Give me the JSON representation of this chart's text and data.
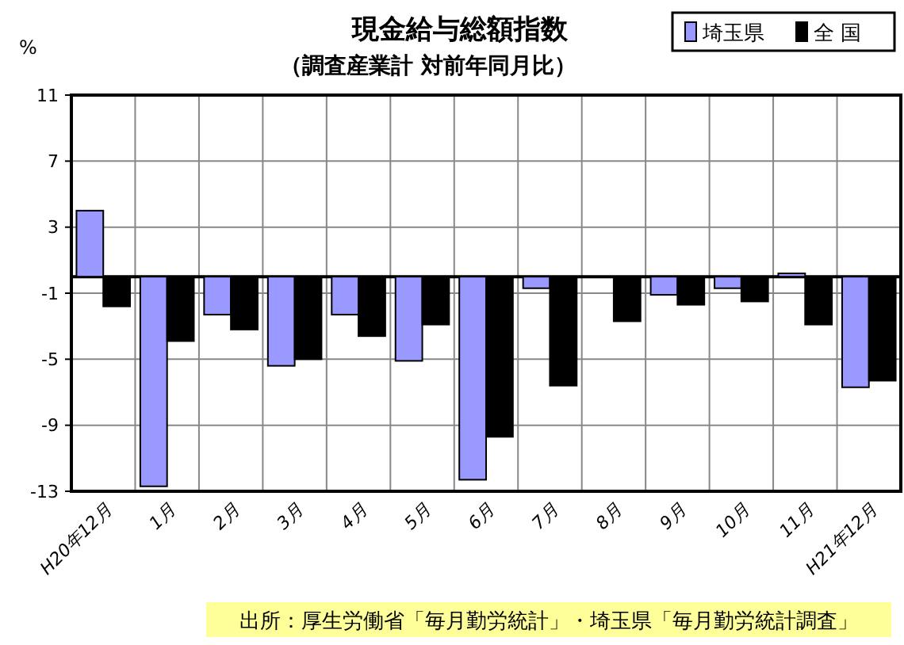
{
  "chart_data": {
    "type": "bar",
    "title": "現金給与総額指数",
    "subtitle": "（調査産業計 対前年同月比）",
    "ylabel": "%",
    "categories": [
      "H20年12月",
      "1月",
      "2月",
      "3月",
      "4月",
      "5月",
      "6月",
      "7月",
      "8月",
      "9月",
      "10月",
      "11月",
      "H21年12月"
    ],
    "series": [
      {
        "name": "埼玉県",
        "color": "#9999ff",
        "values": [
          4.0,
          -12.7,
          -2.3,
          -5.4,
          -2.3,
          -5.1,
          -12.3,
          -0.7,
          0,
          -1.1,
          -0.7,
          0.2,
          -6.7
        ]
      },
      {
        "name": "全 国",
        "color": "#000000",
        "values": [
          -1.8,
          -3.9,
          -3.2,
          -5.0,
          -3.6,
          -2.9,
          -9.7,
          -6.6,
          -2.7,
          -1.7,
          -1.5,
          -2.9,
          -6.3
        ]
      }
    ],
    "ylim": [
      -13,
      11
    ],
    "yticks": [
      -13,
      -9,
      -5,
      -1,
      3,
      7,
      11
    ],
    "grid": true,
    "legend": "top right",
    "annotations": [
      "出所：厚生労働省「毎月勤労統計」・埼玉県「毎月勤労統計調査」"
    ]
  }
}
